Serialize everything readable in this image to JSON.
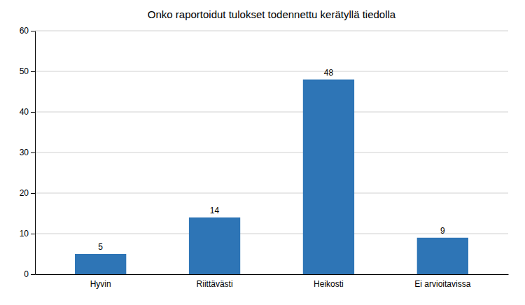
{
  "chart_data": {
    "type": "bar",
    "title": "Onko raportoidut tulokset todennettu kerätyllä tiedolla",
    "categories": [
      "Hyvin",
      "Riittävästi",
      "Heikosti",
      "Ei arvioitavissa"
    ],
    "values": [
      5,
      14,
      48,
      9
    ],
    "color": "#2E75B6",
    "ylim": [
      0,
      60
    ],
    "yticks": [
      0,
      10,
      20,
      30,
      40,
      50,
      60
    ],
    "grid": true,
    "data_labels": true
  }
}
